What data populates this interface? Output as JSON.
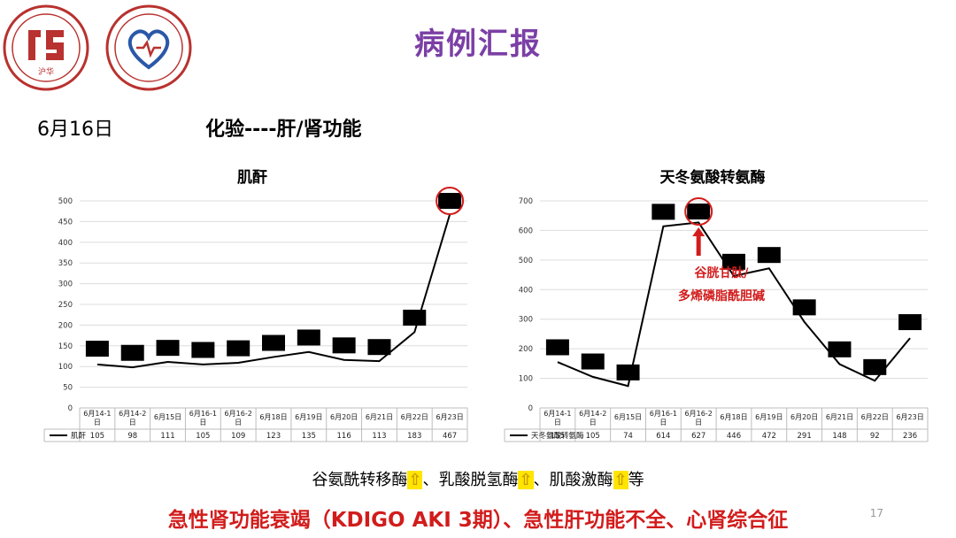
{
  "slide": {
    "title": "病例汇报",
    "date": "6月16日",
    "section": "化验----肝/肾功能",
    "page_number": "17"
  },
  "logos": [
    {
      "icon": "hospital-seal-icon",
      "text": "沪华"
    },
    {
      "icon": "cardiology-heart-seal-icon"
    }
  ],
  "annotation": {
    "line1": "谷胱甘肽/",
    "line2": "多烯磷脂酰胆碱"
  },
  "enzymes": {
    "items": [
      "谷氨酰转移酶",
      "乳酸脱氢酶",
      "肌酸激酶"
    ],
    "arrow": "⇧",
    "separator": "、",
    "suffix": "等"
  },
  "diagnosis": "急性肾功能衰竭（KDIGO AKI 3期）、急性肝功能不全、心肾综合征",
  "colors": {
    "title": "#7b3fa6",
    "highlight": "#d21c1c",
    "arrow_bg": "#ffe500",
    "line": "#000000"
  },
  "chart_data": [
    {
      "type": "line",
      "title": "肌酐",
      "series": [
        {
          "name": "肌酐",
          "values": [
            105,
            98,
            111,
            105,
            109,
            123,
            135,
            116,
            113,
            183,
            467
          ]
        }
      ],
      "categories": [
        [
          "6月14-1",
          "日"
        ],
        [
          "6月14-2",
          "日"
        ],
        [
          "6月15日"
        ],
        [
          "6月16-1",
          "日"
        ],
        [
          "6月16-2",
          "日"
        ],
        [
          "6月18日"
        ],
        [
          "6月19日"
        ],
        [
          "6月20日"
        ],
        [
          "6月21日"
        ],
        [
          "6月22日"
        ],
        [
          "6月23日"
        ]
      ],
      "yticks": [
        0,
        50,
        100,
        150,
        200,
        250,
        300,
        350,
        400,
        450,
        500
      ],
      "ylim": [
        0,
        500
      ],
      "label_values": [
        143,
        133,
        145,
        140,
        144,
        157,
        170,
        151,
        147,
        218,
        500
      ],
      "circled_index": 10,
      "grid": true,
      "legend": "data-table"
    },
    {
      "type": "line",
      "title": "天冬氨酸转氨酶",
      "series": [
        {
          "name": "天冬氨酸转氨酶",
          "values": [
            155,
            105,
            74,
            614,
            627,
            446,
            472,
            291,
            148,
            92,
            236
          ]
        }
      ],
      "categories": [
        [
          "6月14-1",
          "日"
        ],
        [
          "6月14-2",
          "日"
        ],
        [
          "6月15日"
        ],
        [
          "6月16-1",
          "日"
        ],
        [
          "6月16-2",
          "日"
        ],
        [
          "6月18日"
        ],
        [
          "6月19日"
        ],
        [
          "6月20日"
        ],
        [
          "6月21日"
        ],
        [
          "6月22日"
        ],
        [
          "6月23日"
        ]
      ],
      "yticks": [
        0,
        100,
        200,
        300,
        400,
        500,
        600,
        700
      ],
      "ylim": [
        0,
        700
      ],
      "label_values": [
        205,
        157,
        120,
        663,
        664,
        494,
        517,
        340,
        198,
        138,
        290
      ],
      "circled_index": 4,
      "arrow_index": 4,
      "grid": true,
      "legend": "data-table"
    }
  ]
}
